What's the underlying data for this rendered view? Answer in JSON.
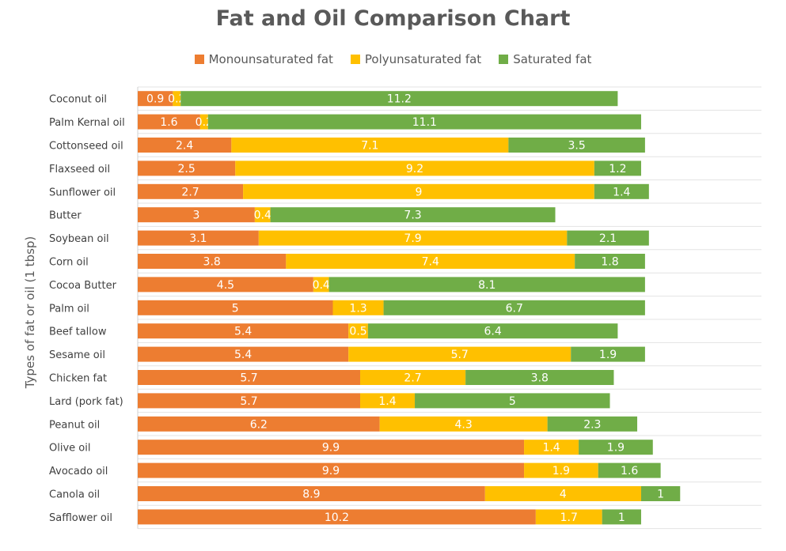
{
  "chart_data": {
    "type": "bar",
    "orientation": "horizontal",
    "stacked": true,
    "title": "Fat and Oil Comparison Chart",
    "ylabel": "Types of fat or oil (1 tbsp)",
    "xlabel": "",
    "legend_position": "top",
    "grid": true,
    "categories": [
      "Coconut oil",
      "Palm Kernal oil",
      "Cottonseed oil",
      "Flaxseed oil",
      "Sunflower oil",
      "Butter",
      "Soybean oil",
      "Corn oil",
      "Cocoa Butter",
      "Palm oil",
      "Beef tallow",
      "Sesame oil",
      "Chicken fat",
      "Lard (pork fat)",
      "Peanut oil",
      "Olive oil",
      "Avocado oil",
      "Canola oil",
      "Safflower oil"
    ],
    "series": [
      {
        "name": "Monounsaturated fat",
        "color": "#ED7D31",
        "values": [
          0.9,
          1.6,
          2.4,
          2.5,
          2.7,
          3,
          3.1,
          3.8,
          4.5,
          5,
          5.4,
          5.4,
          5.7,
          5.7,
          6.2,
          9.9,
          9.9,
          8.9,
          10.2
        ]
      },
      {
        "name": "Polyunsaturated fat",
        "color": "#FFC000",
        "values": [
          0.2,
          0.2,
          7.1,
          9.2,
          9,
          0.4,
          7.9,
          7.4,
          0.4,
          1.3,
          0.5,
          5.7,
          2.7,
          1.4,
          4.3,
          1.4,
          1.9,
          4,
          1.7
        ]
      },
      {
        "name": "Saturated fat",
        "color": "#70AD47",
        "values": [
          11.2,
          11.1,
          3.5,
          1.2,
          1.4,
          7.3,
          2.1,
          1.8,
          8.1,
          6.7,
          6.4,
          1.9,
          3.8,
          5,
          2.3,
          1.9,
          1.6,
          1,
          1
        ]
      }
    ],
    "xlim": [
      0,
      16
    ]
  }
}
